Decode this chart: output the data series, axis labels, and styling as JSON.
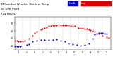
{
  "title": "Milwaukee Weather Outdoor Temp",
  "title2": "vs Dew Point",
  "title3": "(24 Hours)",
  "title_fontsize": 2.8,
  "background_color": "#ffffff",
  "grid_color": "#bbbbbb",
  "ylim": [
    15,
    58
  ],
  "xlim": [
    0,
    24
  ],
  "temp_color": "#dd0000",
  "dew_color": "#0000cc",
  "temp_x": [
    0.0,
    0.5,
    1.0,
    1.5,
    2.0,
    2.5,
    3.5,
    4.5,
    5.0,
    5.5,
    6.5,
    7.0,
    7.5,
    8.0,
    8.5,
    9.0,
    9.5,
    10.0,
    10.5,
    11.0,
    11.5,
    12.0,
    12.5,
    13.0,
    13.5,
    14.0,
    14.5,
    15.0,
    16.0,
    16.5,
    17.0,
    17.5,
    18.0,
    18.5,
    19.0,
    19.5,
    20.0,
    21.0,
    22.0,
    23.0,
    23.5
  ],
  "temp_y": [
    27,
    27,
    26,
    26,
    26,
    27,
    30,
    34,
    37,
    39,
    42,
    43,
    44,
    45,
    46,
    46,
    47,
    47,
    47,
    48,
    47,
    47,
    47,
    47,
    47,
    46,
    46,
    46,
    44,
    44,
    44,
    43,
    43,
    42,
    41,
    40,
    39,
    36,
    34,
    32,
    31
  ],
  "dew_x": [
    0.0,
    0.5,
    1.0,
    1.5,
    3.0,
    3.5,
    4.5,
    5.5,
    6.5,
    7.5,
    8.5,
    9.5,
    10.5,
    11.5,
    12.5,
    13.5,
    14.5,
    15.5,
    16.5,
    17.5,
    18.5,
    19.5,
    20.0,
    20.5,
    21.0,
    21.5,
    22.0,
    22.5,
    23.0
  ],
  "dew_y": [
    20,
    20,
    20,
    20,
    22,
    23,
    26,
    27,
    28,
    28,
    28,
    28,
    29,
    27,
    26,
    24,
    23,
    22,
    21,
    22,
    24,
    30,
    35,
    36,
    37,
    37,
    37,
    36,
    36
  ],
  "legend_dew_label": "Dew Pt",
  "legend_temp_label": "Temp",
  "ytick_values": [
    20,
    30,
    40,
    50
  ],
  "ytick_labels": [
    "20",
    "30",
    "40",
    "50"
  ],
  "xtick_positions": [
    1,
    3,
    5,
    7,
    9,
    11,
    13,
    15,
    17,
    19,
    21,
    23
  ],
  "xtick_labels": [
    "1",
    "3",
    "5",
    "7",
    "9",
    "11",
    "13",
    "15",
    "17",
    "19",
    "21",
    "23"
  ],
  "marker_size": 1.2,
  "vline_positions": [
    2,
    4,
    6,
    8,
    10,
    12,
    14,
    16,
    18,
    20,
    22,
    24
  ]
}
